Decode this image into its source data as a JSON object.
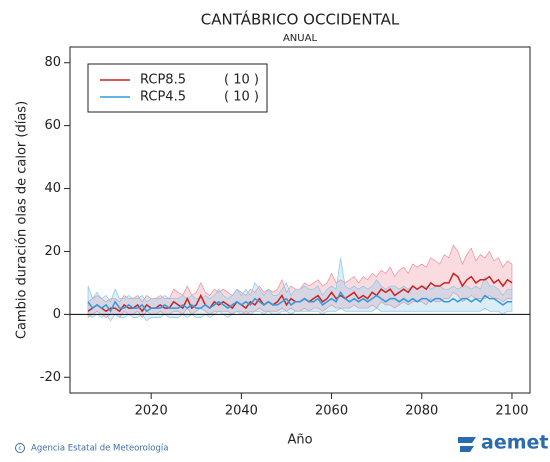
{
  "chart_data": {
    "type": "band-line",
    "title": "CANTÁBRICO OCCIDENTAL",
    "subtitle": "ANUAL",
    "x_label": "Año",
    "y_label": "Cambio duración olas de calor (días)",
    "xlim": [
      2002,
      2104
    ],
    "xticks": [
      2020,
      2040,
      2060,
      2080,
      2100
    ],
    "ylim": [
      -25,
      85
    ],
    "yticks": [
      -20,
      0,
      20,
      40,
      60,
      80
    ],
    "reference_line": 0,
    "x": [
      2006,
      2007,
      2008,
      2009,
      2010,
      2011,
      2012,
      2013,
      2014,
      2015,
      2016,
      2017,
      2018,
      2019,
      2020,
      2021,
      2022,
      2023,
      2024,
      2025,
      2026,
      2027,
      2028,
      2029,
      2030,
      2031,
      2032,
      2033,
      2034,
      2035,
      2036,
      2037,
      2038,
      2039,
      2040,
      2041,
      2042,
      2043,
      2044,
      2045,
      2046,
      2047,
      2048,
      2049,
      2050,
      2051,
      2052,
      2053,
      2054,
      2055,
      2056,
      2057,
      2058,
      2059,
      2060,
      2061,
      2062,
      2063,
      2064,
      2065,
      2066,
      2067,
      2068,
      2069,
      2070,
      2071,
      2072,
      2073,
      2074,
      2075,
      2076,
      2077,
      2078,
      2079,
      2080,
      2081,
      2082,
      2083,
      2084,
      2085,
      2086,
      2087,
      2088,
      2089,
      2090,
      2091,
      2092,
      2093,
      2094,
      2095,
      2096,
      2097,
      2098,
      2099,
      2100
    ],
    "series": [
      {
        "name": "RCP8.5",
        "legend_note": "( 10 )",
        "color": "#cc2222",
        "band_color": "#f08c98",
        "values": [
          1,
          2,
          3,
          2,
          1,
          2,
          2,
          1,
          3,
          2,
          2,
          3,
          1,
          3,
          2,
          2,
          3,
          2,
          2,
          4,
          3,
          2,
          5,
          2,
          3,
          6,
          3,
          2,
          4,
          3,
          4,
          3,
          2,
          4,
          3,
          2,
          4,
          3,
          5,
          3,
          4,
          3,
          4,
          6,
          3,
          5,
          4,
          4,
          5,
          4,
          5,
          6,
          4,
          5,
          7,
          5,
          6,
          5,
          6,
          7,
          5,
          6,
          5,
          7,
          6,
          8,
          7,
          8,
          6,
          7,
          8,
          7,
          9,
          8,
          9,
          8,
          10,
          9,
          9,
          10,
          10,
          13,
          12,
          9,
          11,
          12,
          10,
          11,
          11,
          12,
          10,
          11,
          9,
          11,
          10
        ],
        "high": [
          4,
          5,
          6,
          5,
          4,
          5,
          5,
          4,
          6,
          5,
          5,
          6,
          4,
          6,
          5,
          5,
          6,
          5,
          5,
          8,
          7,
          6,
          9,
          6,
          7,
          10,
          7,
          6,
          8,
          7,
          8,
          7,
          6,
          8,
          7,
          6,
          8,
          7,
          9,
          7,
          8,
          7,
          8,
          11,
          7,
          9,
          8,
          8,
          10,
          9,
          10,
          11,
          9,
          10,
          13,
          10,
          11,
          10,
          11,
          12,
          10,
          12,
          11,
          13,
          12,
          14,
          13,
          15,
          12,
          14,
          15,
          13,
          16,
          15,
          16,
          15,
          18,
          17,
          16,
          19,
          18,
          22,
          20,
          16,
          19,
          21,
          17,
          19,
          18,
          20,
          17,
          18,
          15,
          17,
          16
        ],
        "low": [
          -1,
          0,
          1,
          0,
          -1,
          0,
          0,
          -1,
          1,
          0,
          0,
          1,
          -1,
          1,
          0,
          0,
          1,
          0,
          0,
          1,
          1,
          0,
          2,
          0,
          1,
          2,
          1,
          0,
          1,
          1,
          1,
          1,
          0,
          1,
          1,
          0,
          1,
          1,
          2,
          1,
          1,
          1,
          1,
          2,
          1,
          2,
          1,
          1,
          2,
          1,
          2,
          2,
          1,
          2,
          3,
          2,
          2,
          2,
          2,
          3,
          2,
          2,
          2,
          3,
          2,
          4,
          3,
          3,
          2,
          3,
          4,
          3,
          4,
          4,
          4,
          3,
          5,
          4,
          4,
          5,
          5,
          7,
          6,
          4,
          5,
          6,
          5,
          5,
          5,
          6,
          5,
          5,
          4,
          5,
          5
        ]
      },
      {
        "name": "RCP4.5",
        "legend_note": "( 10 )",
        "color": "#3399dd",
        "band_color": "#88c8e8",
        "values": [
          4,
          2,
          3,
          2,
          3,
          1,
          4,
          2,
          2,
          3,
          2,
          2,
          3,
          1,
          2,
          2,
          2,
          3,
          2,
          2,
          2,
          3,
          2,
          3,
          2,
          2,
          3,
          2,
          3,
          4,
          3,
          2,
          3,
          4,
          3,
          4,
          3,
          5,
          4,
          3,
          4,
          3,
          3,
          4,
          5,
          3,
          4,
          4,
          5,
          4,
          4,
          5,
          3,
          4,
          5,
          4,
          7,
          5,
          4,
          5,
          4,
          5,
          4,
          5,
          6,
          5,
          4,
          5,
          5,
          4,
          5,
          4,
          5,
          4,
          5,
          5,
          4,
          5,
          5,
          4,
          4,
          5,
          4,
          5,
          5,
          4,
          5,
          4,
          6,
          5,
          5,
          4,
          3,
          4,
          4
        ],
        "high": [
          9,
          5,
          7,
          5,
          6,
          4,
          8,
          5,
          5,
          6,
          5,
          5,
          6,
          4,
          5,
          5,
          5,
          6,
          5,
          5,
          5,
          6,
          5,
          6,
          5,
          5,
          6,
          5,
          6,
          8,
          6,
          5,
          6,
          8,
          6,
          8,
          6,
          10,
          8,
          6,
          8,
          6,
          6,
          8,
          10,
          6,
          8,
          8,
          9,
          8,
          8,
          9,
          6,
          8,
          9,
          8,
          18,
          9,
          8,
          9,
          8,
          9,
          8,
          9,
          11,
          9,
          8,
          9,
          9,
          8,
          9,
          8,
          9,
          8,
          9,
          9,
          8,
          9,
          9,
          8,
          8,
          9,
          8,
          9,
          9,
          8,
          9,
          8,
          12,
          9,
          9,
          8,
          6,
          8,
          8
        ],
        "low": [
          0,
          -1,
          0,
          -1,
          0,
          -2,
          0,
          -1,
          -1,
          0,
          -1,
          -1,
          0,
          -2,
          -1,
          -1,
          -1,
          0,
          -1,
          -1,
          -1,
          0,
          -1,
          0,
          -1,
          -1,
          0,
          -1,
          0,
          1,
          0,
          -1,
          0,
          1,
          0,
          1,
          0,
          1,
          1,
          0,
          1,
          0,
          0,
          1,
          1,
          0,
          1,
          1,
          1,
          1,
          1,
          1,
          0,
          1,
          1,
          1,
          2,
          1,
          1,
          1,
          1,
          1,
          1,
          1,
          2,
          1,
          1,
          1,
          1,
          1,
          1,
          1,
          1,
          1,
          1,
          1,
          1,
          1,
          1,
          1,
          1,
          1,
          1,
          1,
          1,
          1,
          1,
          1,
          2,
          1,
          1,
          1,
          0,
          1,
          1
        ]
      }
    ],
    "source": "Agencia Estatal de Meteorología",
    "logo": "aemet"
  }
}
